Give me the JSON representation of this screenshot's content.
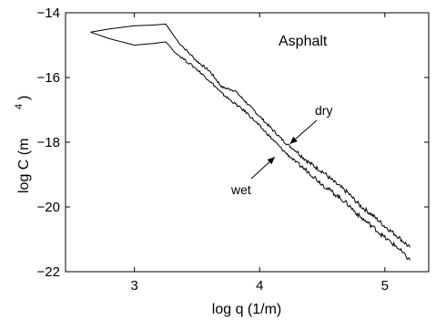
{
  "chart_data": {
    "type": "line",
    "title": "",
    "xlabel": "log q (1/m)",
    "ylabel_main": "log C (m",
    "ylabel_sup": "4",
    "ylabel_close": ")",
    "xlim": [
      2.45,
      5.35
    ],
    "ylim": [
      -22,
      -14
    ],
    "xticks": [
      3,
      4,
      5
    ],
    "yticks": [
      -22,
      -20,
      -18,
      -16,
      -14
    ],
    "ytick_labels": [
      "−22",
      "−20",
      "−18",
      "−16",
      "−14"
    ],
    "grid": false,
    "annotations": [
      {
        "text": "Asphalt"
      },
      {
        "text": "dry",
        "points_to": [
          4.22,
          -18.05
        ]
      },
      {
        "text": "wet",
        "points_to": [
          4.15,
          -18.4
        ]
      }
    ],
    "series": [
      {
        "name": "dry",
        "color": "#000000",
        "x": [
          2.65,
          2.8,
          3.0,
          3.15,
          3.25,
          3.35,
          3.5,
          3.6,
          3.7,
          3.8,
          3.9,
          4.0,
          4.1,
          4.2,
          4.3,
          4.4,
          4.5,
          4.6,
          4.7,
          4.8,
          4.9,
          5.0,
          5.1,
          5.2
        ],
        "y": [
          -14.6,
          -14.5,
          -14.4,
          -14.38,
          -14.35,
          -14.9,
          -15.5,
          -15.8,
          -16.3,
          -16.4,
          -16.8,
          -17.2,
          -17.6,
          -18.0,
          -18.3,
          -18.65,
          -18.9,
          -19.25,
          -19.55,
          -19.95,
          -20.25,
          -20.6,
          -20.9,
          -21.25
        ]
      },
      {
        "name": "wet",
        "color": "#000000",
        "x": [
          2.65,
          2.8,
          3.0,
          3.15,
          3.25,
          3.35,
          3.5,
          3.6,
          3.7,
          3.8,
          3.9,
          4.0,
          4.1,
          4.2,
          4.3,
          4.4,
          4.5,
          4.6,
          4.7,
          4.8,
          4.9,
          5.0,
          5.1,
          5.2
        ],
        "y": [
          -14.6,
          -14.8,
          -15.0,
          -14.95,
          -14.9,
          -15.3,
          -15.75,
          -16.1,
          -16.5,
          -16.8,
          -17.1,
          -17.5,
          -17.9,
          -18.3,
          -18.65,
          -18.95,
          -19.3,
          -19.6,
          -19.9,
          -20.3,
          -20.6,
          -20.95,
          -21.25,
          -21.65
        ]
      }
    ]
  }
}
